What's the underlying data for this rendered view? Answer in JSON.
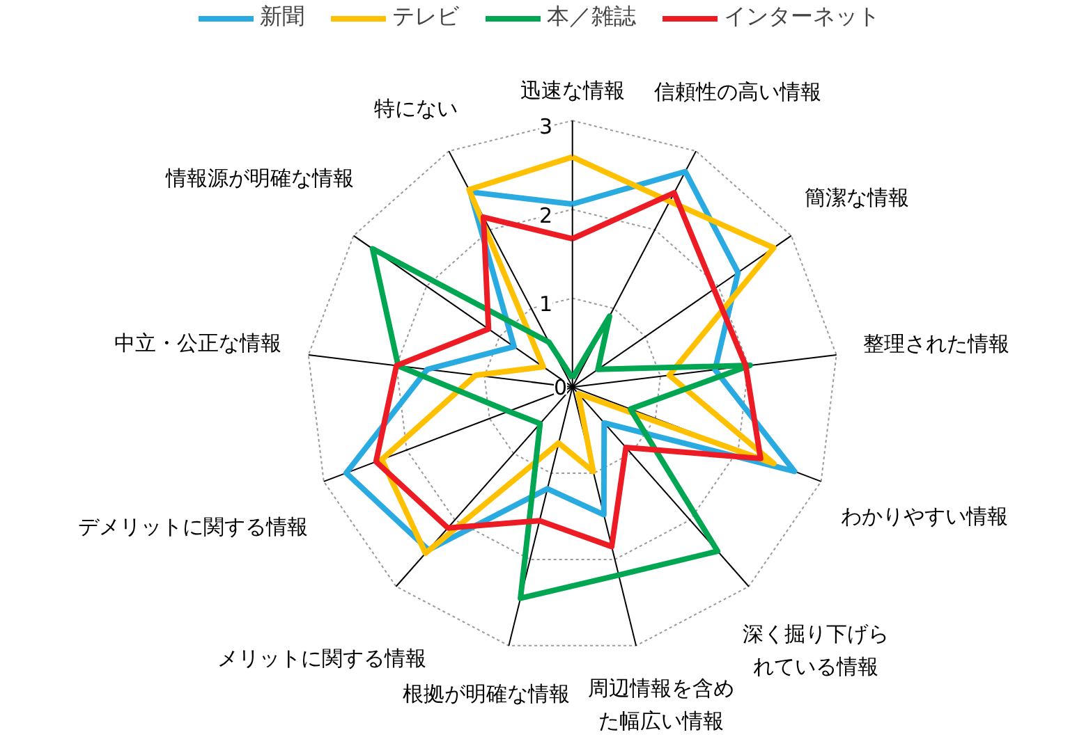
{
  "chart_data": {
    "type": "radar",
    "categories": [
      "迅速な情報",
      "信頼性の高い情報",
      "簡潔な情報",
      "整理された情報",
      "わかりやすい情報",
      "深く掘り下げられている情報",
      "周辺情報を含めた幅広い情報",
      "根拠が明確な情報",
      "メリットに関する情報",
      "デメリットに関する情報",
      "中立・公正な情報",
      "情報源が明確な情報",
      "特にない"
    ],
    "series": [
      {
        "name": "新聞",
        "color": "#29abe2",
        "values": [
          2.06,
          2.74,
          2.27,
          1.62,
          2.68,
          0.54,
          1.48,
          1.18,
          2.45,
          2.73,
          1.65,
          0.8,
          2.48
        ]
      },
      {
        "name": "テレビ",
        "color": "#ffc000",
        "values": [
          2.59,
          2.36,
          2.76,
          1.1,
          2.43,
          0.1,
          0.98,
          0.65,
          2.5,
          2.3,
          1.1,
          0.4,
          2.51
        ]
      },
      {
        "name": "本／雑誌",
        "color": "#00a651",
        "values": [
          0.1,
          0.9,
          0.35,
          2.02,
          0.7,
          2.47,
          2.18,
          2.45,
          0.55,
          0.77,
          1.98,
          2.74,
          0.57
        ]
      },
      {
        "name": "インターネット",
        "color": "#ed1c24",
        "values": [
          1.67,
          2.47,
          1.94,
          1.97,
          2.27,
          0.91,
          1.85,
          1.55,
          2.12,
          2.37,
          2.0,
          1.15,
          2.16
        ]
      }
    ],
    "ylim": [
      0,
      3
    ],
    "yticks": [
      0,
      1,
      2,
      3
    ],
    "grid": true,
    "legend": "top",
    "line_style": "solid",
    "marker": "none"
  }
}
